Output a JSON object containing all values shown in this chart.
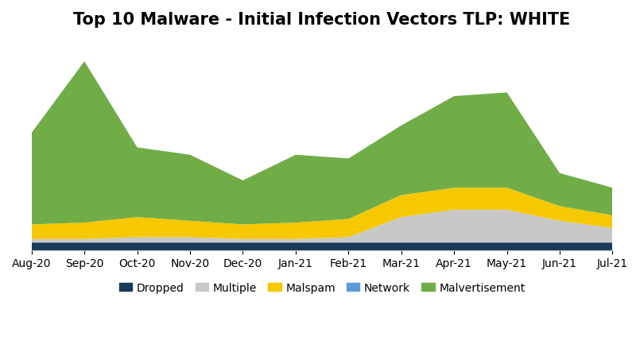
{
  "title": "Top 10 Malware - Initial Infection Vectors TLP: WHITE",
  "x_labels": [
    "Aug-20",
    "Sep-20",
    "Oct-20",
    "Nov-20",
    "Dec-20",
    "Jan-21",
    "Feb-21",
    "Mar-21",
    "Apr-21",
    "May-21",
    "Jun-21",
    "Jul-21"
  ],
  "series_order": [
    "Dropped",
    "Multiple",
    "Malspam",
    "Network",
    "Malvertisement"
  ],
  "series": {
    "Dropped": [
      4,
      4,
      4,
      4,
      4,
      4,
      4,
      4,
      4,
      4,
      4,
      4
    ],
    "Multiple": [
      2,
      2,
      3,
      3,
      2,
      2,
      3,
      14,
      18,
      18,
      12,
      8
    ],
    "Malspam": [
      8,
      9,
      11,
      9,
      8,
      9,
      10,
      12,
      12,
      12,
      8,
      7
    ],
    "Network": [
      0,
      0,
      0,
      0,
      0,
      0,
      0,
      0,
      0,
      0,
      0,
      0
    ],
    "Malvertisement": [
      50,
      88,
      38,
      36,
      24,
      37,
      33,
      38,
      50,
      52,
      18,
      15
    ]
  },
  "colors": {
    "Dropped": "#1a3a5c",
    "Multiple": "#c8c8c8",
    "Malspam": "#f5c800",
    "Network": "#5b9bd5",
    "Malvertisement": "#70ad47"
  },
  "background_color": "#ffffff",
  "grid_color": "#d3d3d3",
  "ylim": [
    0,
    115
  ],
  "yticks": [
    0,
    20,
    40,
    60,
    80,
    100
  ],
  "title_fontsize": 15,
  "legend_fontsize": 10,
  "tick_fontsize": 10
}
